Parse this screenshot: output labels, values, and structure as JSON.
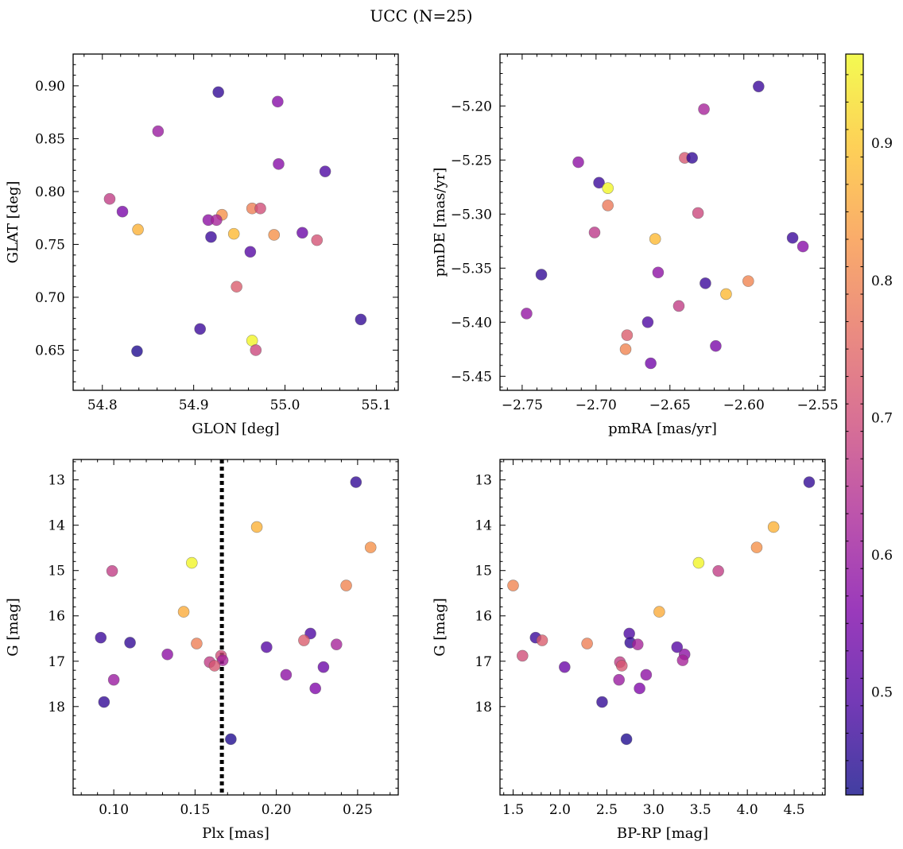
{
  "figure": {
    "title": "UCC (N=25)"
  },
  "colormap": {
    "name": "plasma",
    "range": [
      0.425,
      0.965
    ],
    "ticks": [
      "0.5",
      "0.6",
      "0.7",
      "0.8",
      "0.9"
    ],
    "tick_values": [
      0.5,
      0.6,
      0.7,
      0.8,
      0.9
    ],
    "stops": [
      "#0d0887",
      "#4c02a1",
      "#7e03a8",
      "#a92395",
      "#cc4778",
      "#e56b5d",
      "#f89441",
      "#fdc328",
      "#f0f921"
    ],
    "alpha": 0.78
  },
  "chart_data": [
    {
      "type": "scatter",
      "xlabel": "GLON [deg]",
      "ylabel": "GLAT [deg]",
      "xlim": [
        54.768,
        55.124
      ],
      "ylim": [
        0.612,
        0.93
      ],
      "xticks": [
        54.8,
        54.9,
        55.0,
        55.1
      ],
      "xticklabels": [
        "54.8",
        "54.9",
        "55.0",
        "55.1"
      ],
      "yticks": [
        0.65,
        0.7,
        0.75,
        0.8,
        0.85,
        0.9
      ],
      "yticklabels": [
        "0.65",
        "0.70",
        "0.75",
        "0.80",
        "0.85",
        "0.90"
      ],
      "invert_y": false,
      "points": [
        {
          "x": 54.927,
          "y": 0.894,
          "c": 0.46
        },
        {
          "x": 54.992,
          "y": 0.885,
          "c": 0.57
        },
        {
          "x": 54.861,
          "y": 0.857,
          "c": 0.6
        },
        {
          "x": 54.993,
          "y": 0.826,
          "c": 0.57
        },
        {
          "x": 55.044,
          "y": 0.819,
          "c": 0.49
        },
        {
          "x": 54.808,
          "y": 0.793,
          "c": 0.67
        },
        {
          "x": 54.822,
          "y": 0.781,
          "c": 0.55
        },
        {
          "x": 54.964,
          "y": 0.784,
          "c": 0.79
        },
        {
          "x": 54.973,
          "y": 0.784,
          "c": 0.7
        },
        {
          "x": 54.931,
          "y": 0.778,
          "c": 0.82
        },
        {
          "x": 54.916,
          "y": 0.773,
          "c": 0.58
        },
        {
          "x": 54.925,
          "y": 0.773,
          "c": 0.62
        },
        {
          "x": 54.839,
          "y": 0.764,
          "c": 0.87
        },
        {
          "x": 55.019,
          "y": 0.761,
          "c": 0.53
        },
        {
          "x": 54.944,
          "y": 0.76,
          "c": 0.88
        },
        {
          "x": 54.988,
          "y": 0.759,
          "c": 0.82
        },
        {
          "x": 54.919,
          "y": 0.757,
          "c": 0.47
        },
        {
          "x": 55.035,
          "y": 0.754,
          "c": 0.71
        },
        {
          "x": 54.962,
          "y": 0.743,
          "c": 0.5
        },
        {
          "x": 54.947,
          "y": 0.71,
          "c": 0.73
        },
        {
          "x": 55.083,
          "y": 0.679,
          "c": 0.46
        },
        {
          "x": 54.907,
          "y": 0.67,
          "c": 0.47
        },
        {
          "x": 54.964,
          "y": 0.659,
          "c": 0.96
        },
        {
          "x": 54.968,
          "y": 0.65,
          "c": 0.69
        },
        {
          "x": 54.838,
          "y": 0.649,
          "c": 0.44
        }
      ]
    },
    {
      "type": "scatter",
      "xlabel": "pmRA [mas/yr]",
      "ylabel": "pmDE [mas/yr]",
      "xlim": [
        -2.765,
        -2.545
      ],
      "ylim": [
        -5.463,
        -5.152
      ],
      "xticks": [
        -2.75,
        -2.7,
        -2.65,
        -2.6,
        -2.55
      ],
      "xticklabels": [
        "−2.75",
        "−2.70",
        "−2.65",
        "−2.60",
        "−2.55"
      ],
      "yticks": [
        -5.45,
        -5.4,
        -5.35,
        -5.3,
        -5.25,
        -5.2
      ],
      "yticklabels": [
        "−5.45",
        "−5.40",
        "−5.35",
        "−5.30",
        "−5.25",
        "−5.20"
      ],
      "invert_y": false,
      "points": [
        {
          "x": -2.59,
          "y": -5.182,
          "c": 0.47
        },
        {
          "x": -2.627,
          "y": -5.203,
          "c": 0.62
        },
        {
          "x": -2.712,
          "y": -5.252,
          "c": 0.58
        },
        {
          "x": -2.64,
          "y": -5.248,
          "c": 0.72
        },
        {
          "x": -2.635,
          "y": -5.248,
          "c": 0.46
        },
        {
          "x": -2.698,
          "y": -5.271,
          "c": 0.47
        },
        {
          "x": -2.692,
          "y": -5.276,
          "c": 0.96
        },
        {
          "x": -2.692,
          "y": -5.292,
          "c": 0.78
        },
        {
          "x": -2.631,
          "y": -5.299,
          "c": 0.69
        },
        {
          "x": -2.701,
          "y": -5.317,
          "c": 0.66
        },
        {
          "x": -2.66,
          "y": -5.323,
          "c": 0.88
        },
        {
          "x": -2.567,
          "y": -5.322,
          "c": 0.47
        },
        {
          "x": -2.56,
          "y": -5.33,
          "c": 0.57
        },
        {
          "x": -2.658,
          "y": -5.354,
          "c": 0.58
        },
        {
          "x": -2.737,
          "y": -5.356,
          "c": 0.46
        },
        {
          "x": -2.626,
          "y": -5.364,
          "c": 0.47
        },
        {
          "x": -2.597,
          "y": -5.362,
          "c": 0.8
        },
        {
          "x": -2.612,
          "y": -5.374,
          "c": 0.88
        },
        {
          "x": -2.644,
          "y": -5.385,
          "c": 0.67
        },
        {
          "x": -2.747,
          "y": -5.392,
          "c": 0.59
        },
        {
          "x": -2.665,
          "y": -5.4,
          "c": 0.49
        },
        {
          "x": -2.679,
          "y": -5.412,
          "c": 0.73
        },
        {
          "x": -2.619,
          "y": -5.422,
          "c": 0.55
        },
        {
          "x": -2.68,
          "y": -5.425,
          "c": 0.8
        },
        {
          "x": -2.663,
          "y": -5.438,
          "c": 0.54
        }
      ]
    },
    {
      "type": "scatter",
      "xlabel": "Plx [mas]",
      "ylabel": "G [mag]",
      "xlim": [
        0.075,
        0.275
      ],
      "ylim": [
        12.55,
        19.95
      ],
      "xticks": [
        0.1,
        0.15,
        0.2,
        0.25
      ],
      "xticklabels": [
        "0.10",
        "0.15",
        "0.20",
        "0.25"
      ],
      "yticks": [
        13,
        14,
        15,
        16,
        17,
        18
      ],
      "yticklabels": [
        "13",
        "14",
        "15",
        "16",
        "17",
        "18"
      ],
      "invert_y": true,
      "vline": {
        "x": 0.1665,
        "style": "dotted",
        "color": "#000000"
      },
      "points": [
        {
          "x": 0.249,
          "y": 13.05,
          "c": 0.46
        },
        {
          "x": 0.188,
          "y": 14.04,
          "c": 0.87
        },
        {
          "x": 0.258,
          "y": 14.49,
          "c": 0.82
        },
        {
          "x": 0.148,
          "y": 14.83,
          "c": 0.96
        },
        {
          "x": 0.099,
          "y": 15.01,
          "c": 0.67
        },
        {
          "x": 0.243,
          "y": 15.33,
          "c": 0.8
        },
        {
          "x": 0.143,
          "y": 15.91,
          "c": 0.86
        },
        {
          "x": 0.221,
          "y": 16.39,
          "c": 0.49
        },
        {
          "x": 0.092,
          "y": 16.48,
          "c": 0.47
        },
        {
          "x": 0.217,
          "y": 16.54,
          "c": 0.73
        },
        {
          "x": 0.11,
          "y": 16.59,
          "c": 0.46
        },
        {
          "x": 0.151,
          "y": 16.61,
          "c": 0.79
        },
        {
          "x": 0.237,
          "y": 16.63,
          "c": 0.62
        },
        {
          "x": 0.194,
          "y": 16.69,
          "c": 0.5
        },
        {
          "x": 0.133,
          "y": 16.85,
          "c": 0.58
        },
        {
          "x": 0.166,
          "y": 16.88,
          "c": 0.7
        },
        {
          "x": 0.167,
          "y": 16.98,
          "c": 0.62
        },
        {
          "x": 0.159,
          "y": 17.02,
          "c": 0.67
        },
        {
          "x": 0.162,
          "y": 17.1,
          "c": 0.72
        },
        {
          "x": 0.229,
          "y": 17.13,
          "c": 0.53
        },
        {
          "x": 0.206,
          "y": 17.3,
          "c": 0.58
        },
        {
          "x": 0.1,
          "y": 17.41,
          "c": 0.6
        },
        {
          "x": 0.224,
          "y": 17.6,
          "c": 0.56
        },
        {
          "x": 0.094,
          "y": 17.9,
          "c": 0.46
        },
        {
          "x": 0.172,
          "y": 18.72,
          "c": 0.44
        }
      ]
    },
    {
      "type": "scatter",
      "xlabel": "BP-RP [mag]",
      "ylabel": "G [mag]",
      "xlim": [
        1.36,
        4.83
      ],
      "ylim": [
        12.55,
        19.95
      ],
      "xticks": [
        1.5,
        2.0,
        2.5,
        3.0,
        3.5,
        4.0,
        4.5
      ],
      "xticklabels": [
        "1.5",
        "2.0",
        "2.5",
        "3.0",
        "3.5",
        "4.0",
        "4.5"
      ],
      "yticks": [
        13,
        14,
        15,
        16,
        17,
        18
      ],
      "yticklabels": [
        "13",
        "14",
        "15",
        "16",
        "17",
        "18"
      ],
      "invert_y": true,
      "points": [
        {
          "x": 4.66,
          "y": 13.05,
          "c": 0.46
        },
        {
          "x": 4.28,
          "y": 14.04,
          "c": 0.87
        },
        {
          "x": 4.1,
          "y": 14.49,
          "c": 0.82
        },
        {
          "x": 3.48,
          "y": 14.83,
          "c": 0.96
        },
        {
          "x": 3.69,
          "y": 15.01,
          "c": 0.67
        },
        {
          "x": 1.5,
          "y": 15.33,
          "c": 0.8
        },
        {
          "x": 3.06,
          "y": 15.91,
          "c": 0.86
        },
        {
          "x": 2.74,
          "y": 16.39,
          "c": 0.49
        },
        {
          "x": 1.74,
          "y": 16.48,
          "c": 0.47
        },
        {
          "x": 1.81,
          "y": 16.54,
          "c": 0.73
        },
        {
          "x": 2.75,
          "y": 16.59,
          "c": 0.46
        },
        {
          "x": 2.29,
          "y": 16.61,
          "c": 0.79
        },
        {
          "x": 2.83,
          "y": 16.63,
          "c": 0.62
        },
        {
          "x": 3.25,
          "y": 16.69,
          "c": 0.5
        },
        {
          "x": 3.33,
          "y": 16.85,
          "c": 0.58
        },
        {
          "x": 1.6,
          "y": 16.88,
          "c": 0.7
        },
        {
          "x": 3.31,
          "y": 16.98,
          "c": 0.62
        },
        {
          "x": 2.64,
          "y": 17.02,
          "c": 0.67
        },
        {
          "x": 2.66,
          "y": 17.1,
          "c": 0.72
        },
        {
          "x": 2.05,
          "y": 17.13,
          "c": 0.53
        },
        {
          "x": 2.92,
          "y": 17.3,
          "c": 0.58
        },
        {
          "x": 2.63,
          "y": 17.41,
          "c": 0.6
        },
        {
          "x": 2.85,
          "y": 17.6,
          "c": 0.56
        },
        {
          "x": 2.45,
          "y": 17.9,
          "c": 0.46
        },
        {
          "x": 2.71,
          "y": 18.72,
          "c": 0.44
        }
      ]
    }
  ]
}
